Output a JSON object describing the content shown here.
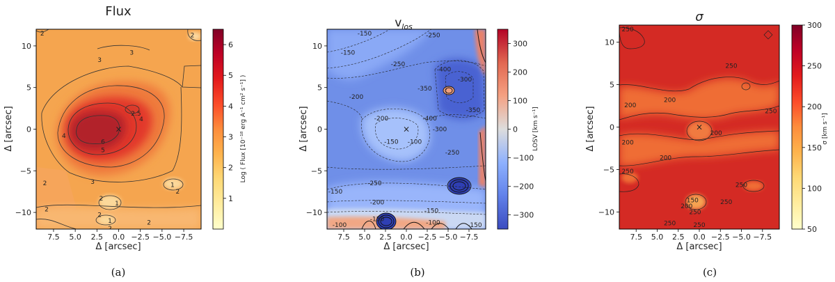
{
  "chart_data": [
    {
      "type": "heatmap",
      "title": "Flux",
      "xlabel": "Δ [arcsec]",
      "ylabel": "Δ [arcsec]",
      "colorbar_label": "Log ( Flux [10⁻¹⁸ erg A⁻¹ cm² s⁻¹] )",
      "xlim": [
        9.5,
        -9.5
      ],
      "ylim": [
        -12,
        12
      ],
      "x_ticks": [
        7.5,
        5.0,
        2.5,
        0.0,
        -2.5,
        -5.0,
        -7.5
      ],
      "x_tick_labels": [
        "7.5",
        "5.0",
        "2.5",
        "0.0",
        "−2.5",
        "−5.0",
        "−7.5"
      ],
      "y_ticks": [
        10,
        5,
        0,
        -5,
        -10
      ],
      "y_tick_labels": [
        "10",
        "5",
        "0",
        "−5",
        "−10"
      ],
      "colorbar_range": [
        0,
        6.5
      ],
      "colorbar_ticks": [
        1,
        2,
        3,
        4,
        5,
        6
      ],
      "colorbar_tick_labels": [
        "1",
        "2",
        "3",
        "4",
        "5",
        "6"
      ],
      "colormap": "YlOrRd",
      "center_marker": {
        "x": 0,
        "y": 0,
        "symbol": "×"
      },
      "contour_labels": [
        {
          "text": "2",
          "x": 8.8,
          "y": 11.5
        },
        {
          "text": "2",
          "x": -8.5,
          "y": 11.3
        },
        {
          "text": "3",
          "x": -1.5,
          "y": 9.2
        },
        {
          "text": "3",
          "x": 2.2,
          "y": 8.3
        },
        {
          "text": "2.5",
          "x": -2.0,
          "y": 1.9
        },
        {
          "text": "4",
          "x": -2.6,
          "y": 1.2
        },
        {
          "text": "4",
          "x": 6.3,
          "y": -0.8
        },
        {
          "text": "6",
          "x": 1.8,
          "y": -1.5
        },
        {
          "text": "5",
          "x": 1.8,
          "y": -2.5
        },
        {
          "text": "3",
          "x": 3.0,
          "y": -6.3
        },
        {
          "text": "2",
          "x": 8.5,
          "y": -6.5
        },
        {
          "text": "1",
          "x": -6.2,
          "y": -6.7
        },
        {
          "text": "2",
          "x": -6.8,
          "y": -7.5
        },
        {
          "text": "2",
          "x": 2.0,
          "y": -8.3
        },
        {
          "text": "1",
          "x": 0.2,
          "y": -8.9
        },
        {
          "text": "2",
          "x": 8.3,
          "y": -9.6
        },
        {
          "text": "2",
          "x": 2.2,
          "y": -10.3
        },
        {
          "text": "1",
          "x": 1.0,
          "y": -11.0
        },
        {
          "text": "2",
          "x": -3.5,
          "y": -11.2
        },
        {
          "text": "2",
          "x": 1.0,
          "y": -11.9
        }
      ]
    },
    {
      "type": "heatmap",
      "title": "v",
      "title_subscript": "los",
      "xlabel": "Δ [arcsec]",
      "ylabel": "Δ [arcsec]",
      "colorbar_label": "LOSV [km s⁻¹]",
      "xlim": [
        9.5,
        -9.5
      ],
      "ylim": [
        -12,
        12
      ],
      "x_ticks": [
        7.5,
        5.0,
        2.5,
        0.0,
        -2.5,
        -5.0,
        -7.5
      ],
      "x_tick_labels": [
        "7.5",
        "5.0",
        "2.5",
        "0.0",
        "−2.5",
        "−5.0",
        "−7.5"
      ],
      "y_ticks": [
        10,
        5,
        0,
        -5,
        -10
      ],
      "y_tick_labels": [
        "10",
        "5",
        "0",
        "−5",
        "−10"
      ],
      "colorbar_range": [
        -350,
        350
      ],
      "colorbar_ticks": [
        300,
        200,
        100,
        0,
        -100,
        -200,
        -300
      ],
      "colorbar_tick_labels": [
        "300",
        "200",
        "100",
        "0",
        "−100",
        "−200",
        "−300"
      ],
      "colormap": "coolwarm",
      "center_marker": {
        "x": 0,
        "y": 0,
        "symbol": "×"
      },
      "contour_labels": [
        {
          "text": "-150",
          "x": 5.0,
          "y": 11.5
        },
        {
          "text": "-250",
          "x": -3.2,
          "y": 11.3
        },
        {
          "text": "-150",
          "x": 7.0,
          "y": 9.2
        },
        {
          "text": "-250",
          "x": 1.0,
          "y": 7.8
        },
        {
          "text": "-400",
          "x": -4.5,
          "y": 7.2
        },
        {
          "text": "-350",
          "x": -2.2,
          "y": 4.9
        },
        {
          "text": "-300",
          "x": -7.0,
          "y": 6.0
        },
        {
          "text": "-200",
          "x": 6.0,
          "y": 3.9
        },
        {
          "text": "-350",
          "x": -8.0,
          "y": 2.3
        },
        {
          "text": "-200",
          "x": 3.0,
          "y": 1.3
        },
        {
          "text": "-400",
          "x": -2.8,
          "y": 1.3
        },
        {
          "text": "-300",
          "x": -4.0,
          "y": -0.0
        },
        {
          "text": "-150",
          "x": 1.8,
          "y": -1.5
        },
        {
          "text": "-100",
          "x": -1.0,
          "y": -1.5
        },
        {
          "text": "-250",
          "x": -5.5,
          "y": -2.8
        },
        {
          "text": "-250",
          "x": 3.8,
          "y": -6.5
        },
        {
          "text": "-150",
          "x": 8.5,
          "y": -7.5
        },
        {
          "text": "-200",
          "x": 3.5,
          "y": -8.8
        },
        {
          "text": "-150",
          "x": -3.0,
          "y": -9.8
        },
        {
          "text": "-100",
          "x": 8.0,
          "y": -11.5
        },
        {
          "text": "-150",
          "x": 3.5,
          "y": -10.8
        },
        {
          "text": "-100",
          "x": -3.2,
          "y": -11.2
        },
        {
          "text": "-150",
          "x": -8.2,
          "y": -11.5
        }
      ]
    },
    {
      "type": "heatmap",
      "title": "σ",
      "xlabel": "Δ [arcsec]",
      "ylabel": "Δ [arcsec]",
      "colorbar_label": "σ [km s⁻¹]",
      "xlim": [
        9.5,
        -9.5
      ],
      "ylim": [
        -12,
        12
      ],
      "x_ticks": [
        7.5,
        5.0,
        2.5,
        0.0,
        -2.5,
        -5.0,
        -7.5
      ],
      "x_tick_labels": [
        "7.5",
        "5.0",
        "2.5",
        "0.0",
        "−2.5",
        "−5.0",
        "−7.5"
      ],
      "y_ticks": [
        10,
        5,
        0,
        -5,
        -10
      ],
      "y_tick_labels": [
        "10",
        "5",
        "0",
        "−5",
        "−10"
      ],
      "colorbar_range": [
        50,
        300
      ],
      "colorbar_ticks": [
        300,
        250,
        200,
        150,
        100,
        50
      ],
      "colorbar_tick_labels": [
        "300",
        "250",
        "200",
        "150",
        "100",
        "50"
      ],
      "colormap": "YlOrRd",
      "center_marker": {
        "x": 0,
        "y": 0,
        "symbol": "×"
      },
      "contour_labels": [
        {
          "text": "250",
          "x": 8.5,
          "y": 11.5
        },
        {
          "text": "250",
          "x": -3.8,
          "y": 7.2
        },
        {
          "text": "200",
          "x": 3.5,
          "y": 3.2
        },
        {
          "text": "200",
          "x": 8.2,
          "y": 2.6
        },
        {
          "text": "250",
          "x": -8.5,
          "y": 1.9
        },
        {
          "text": "200",
          "x": -2.0,
          "y": -0.7
        },
        {
          "text": "200",
          "x": 8.5,
          "y": -1.8
        },
        {
          "text": "200",
          "x": 4.0,
          "y": -3.6
        },
        {
          "text": "250",
          "x": 8.5,
          "y": -5.2
        },
        {
          "text": "250",
          "x": -5.0,
          "y": -6.8
        },
        {
          "text": "150",
          "x": 0.8,
          "y": -8.6
        },
        {
          "text": "200",
          "x": 1.5,
          "y": -9.3
        },
        {
          "text": "250",
          "x": -3.2,
          "y": -8.8
        },
        {
          "text": "250",
          "x": 0.5,
          "y": -10.0
        },
        {
          "text": "250",
          "x": 3.5,
          "y": -11.3
        },
        {
          "text": "250",
          "x": 0.0,
          "y": -11.5
        }
      ]
    }
  ],
  "panel_labels": [
    "(a)",
    "(b)",
    "(c)"
  ],
  "colors": {
    "flux_background": "#f5a54f",
    "flux_peak": "#a11c24",
    "vlos_background": "#6f8fe8",
    "vlos_deep": "#3b4cc0",
    "vlos_positive": "#e9826a",
    "sigma_background": "#d42a24",
    "sigma_low": "#f27a3f"
  }
}
